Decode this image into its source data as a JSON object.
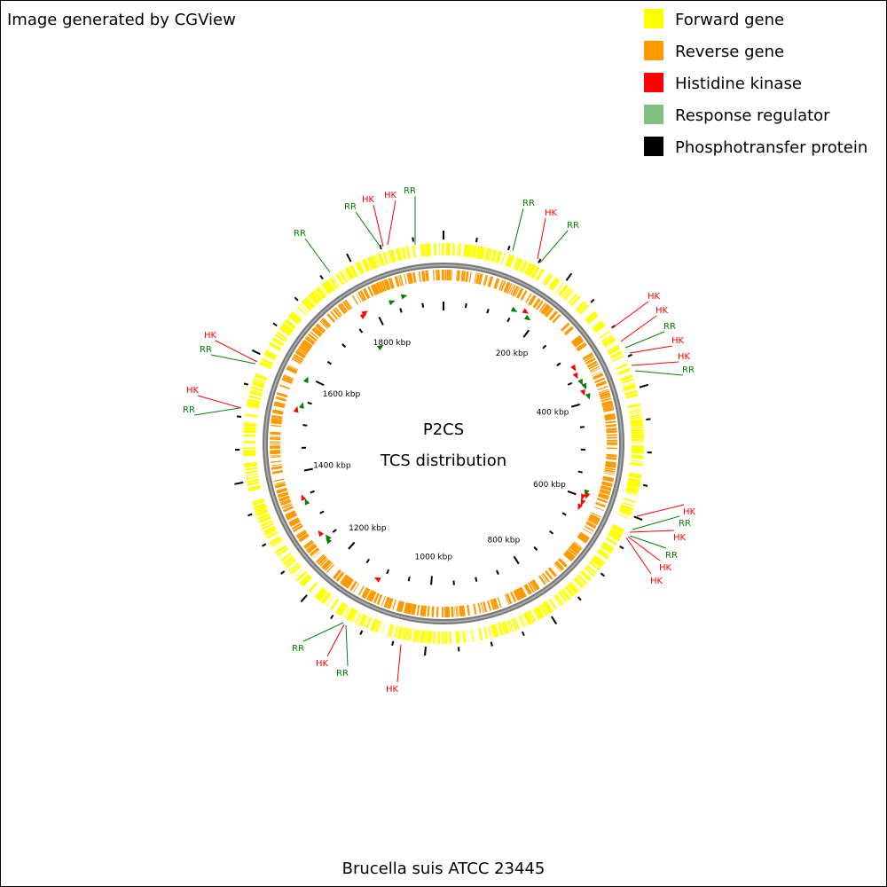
{
  "credit": "Image generated by CGView",
  "legend": [
    "Forward gene",
    "Reverse gene",
    "Histidine kinase",
    "Response regulator",
    "Phosphotransfer protein"
  ],
  "title": "P2CS",
  "subtitle": "TCS distribution",
  "organism": "Brucella suis ATCC 23445",
  "ticks": [
    "200 kbp",
    "400 kbp",
    "600 kbp",
    "800 kbp",
    "1000 kbp",
    "1200 kbp",
    "1400 kbp",
    "1600 kbp",
    "1800 kbp"
  ],
  "tcs_labels": [
    "RR",
    "RR",
    "HK",
    "HK",
    "RR",
    "RR",
    "HK",
    "RR",
    "HK",
    "HK",
    "RR",
    "HK",
    "HK",
    "RR",
    "HK",
    "RR",
    "HK",
    "RR",
    "HK",
    "HK",
    "HK",
    "RR",
    "HK",
    "RR",
    "HK",
    "RR",
    "HK",
    "RR"
  ]
}
